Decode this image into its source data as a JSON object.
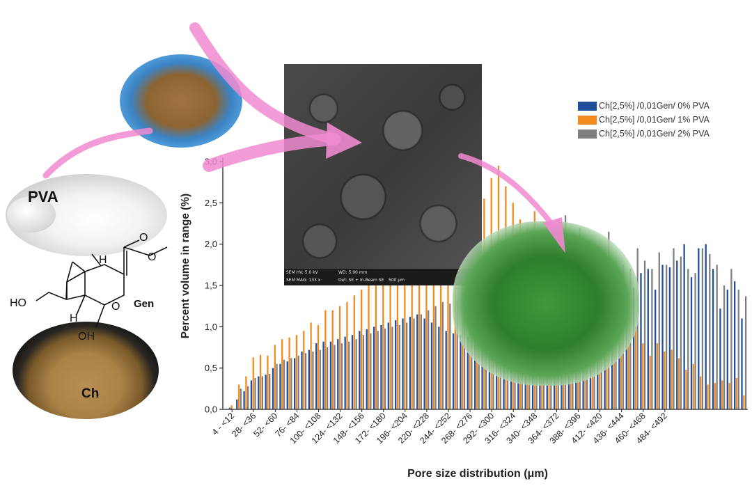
{
  "labels": {
    "pva": "PVA",
    "gen": "Gen",
    "ch": "Ch"
  },
  "molecule": {
    "atom_ho": "HO",
    "atom_oh": "OH",
    "atom_o_ring": "O",
    "atom_o_carbonyl": "O",
    "atom_o_ester": "O",
    "atom_h_top": "H",
    "atom_h_bottom": "H"
  },
  "sem_info": {
    "hv": "SEM HV: 5.0 kV",
    "wd": "WD: 5.90 mm",
    "mag": "SEM MAG: 133 x",
    "det": "Det: SE + In-Beam SE",
    "scale": "500 μm"
  },
  "colors": {
    "series1": "#1f4e9c",
    "series2": "#f28a1f",
    "series3": "#7f7f7f",
    "arrow": "#f08ad0"
  },
  "chart_data": {
    "type": "bar",
    "xlabel": "Pore size distribution (μm)",
    "ylabel": "Percent volume in range (%)",
    "ylim": [
      0,
      3.0
    ],
    "yticks": [
      "0,0",
      "0,5",
      "1,0",
      "1,5",
      "2,0",
      "2,5",
      "3,0"
    ],
    "tick_labels": [
      "4 - <12",
      "28- <36",
      "52- <60",
      "76- <84",
      "100- <108",
      "124- <132",
      "148- <156",
      "172- <180",
      "196- <204",
      "220- <228",
      "244- <252",
      "268- <276",
      "292- <300",
      "316- <324",
      "340- <348",
      "364- <372",
      "388- <396",
      "412- <420",
      "436- <444",
      "460- <468",
      "484- <492"
    ],
    "series": [
      {
        "name": "Ch[2,5%] /0,01Gen/ 0% PVA",
        "values": [
          0.02,
          0.12,
          0.22,
          0.35,
          0.4,
          0.42,
          0.5,
          0.55,
          0.58,
          0.62,
          0.7,
          0.72,
          0.8,
          0.82,
          0.82,
          0.85,
          0.88,
          0.9,
          0.95,
          0.97,
          1.0,
          1.02,
          1.05,
          1.08,
          1.1,
          1.12,
          1.15,
          1.1,
          1.05,
          1.0,
          0.95,
          0.92,
          0.9,
          0.88,
          0.85,
          0.82,
          0.78,
          0.75,
          0.72,
          0.7,
          0.66,
          0.62,
          0.6,
          0.55,
          0.52,
          0.5,
          0.48,
          0.45,
          0.48,
          0.55,
          0.7,
          0.9,
          1.0,
          1.1,
          1.3,
          1.45,
          1.47,
          1.65,
          1.7,
          1.45,
          1.75,
          1.72,
          1.8,
          2.0,
          1.6,
          1.95,
          2.0,
          1.7,
          1.22,
          1.45,
          1.55,
          1.1
        ]
      },
      {
        "name": "Ch[2,5%] /0,01Gen/ 1% PVA",
        "values": [
          0.05,
          0.3,
          0.4,
          0.63,
          0.66,
          0.65,
          0.78,
          0.85,
          0.87,
          0.9,
          0.95,
          1.05,
          1.02,
          1.2,
          1.2,
          1.25,
          1.3,
          1.38,
          1.45,
          1.5,
          1.52,
          1.58,
          1.6,
          1.65,
          1.75,
          1.85,
          2.0,
          2.1,
          2.3,
          2.8,
          2.75,
          2.85,
          2.95,
          2.85,
          2.9,
          2.55,
          2.8,
          2.95,
          2.7,
          2.5,
          2.3,
          2.2,
          2.4,
          2.0,
          1.8,
          1.7,
          1.6,
          1.55,
          1.5,
          1.45,
          1.4,
          1.3,
          1.2,
          1.55,
          1.3,
          1.2,
          1.0,
          0.8,
          0.65,
          0.8,
          0.7,
          0.72,
          0.62,
          0.48,
          0.55,
          0.4,
          0.3,
          0.32,
          0.35,
          0.32,
          0.38,
          0.17
        ]
      },
      {
        "name": "Ch[2,5%] /0,01Gen/ 2% PVA",
        "values": [
          0.0,
          0.25,
          0.28,
          0.38,
          0.4,
          0.43,
          0.55,
          0.6,
          0.62,
          0.65,
          0.68,
          0.7,
          0.72,
          0.75,
          0.78,
          0.8,
          0.82,
          0.85,
          0.9,
          0.92,
          0.95,
          0.98,
          1.0,
          1.02,
          1.05,
          1.1,
          1.15,
          1.2,
          1.25,
          1.3,
          1.28,
          1.32,
          1.35,
          1.38,
          1.4,
          1.42,
          1.45,
          1.5,
          1.55,
          1.6,
          1.62,
          1.7,
          1.8,
          2.0,
          2.1,
          2.3,
          2.35,
          2.15,
          2.2,
          2.0,
          2.0,
          1.85,
          2.15,
          1.8,
          1.75,
          1.7,
          1.95,
          1.8,
          1.7,
          1.9,
          1.75,
          1.95,
          1.85,
          1.7,
          1.65,
          1.95,
          1.88,
          1.75,
          1.5,
          1.7,
          1.45,
          1.37
        ]
      }
    ],
    "legend_position": "top-right",
    "grid": false
  }
}
